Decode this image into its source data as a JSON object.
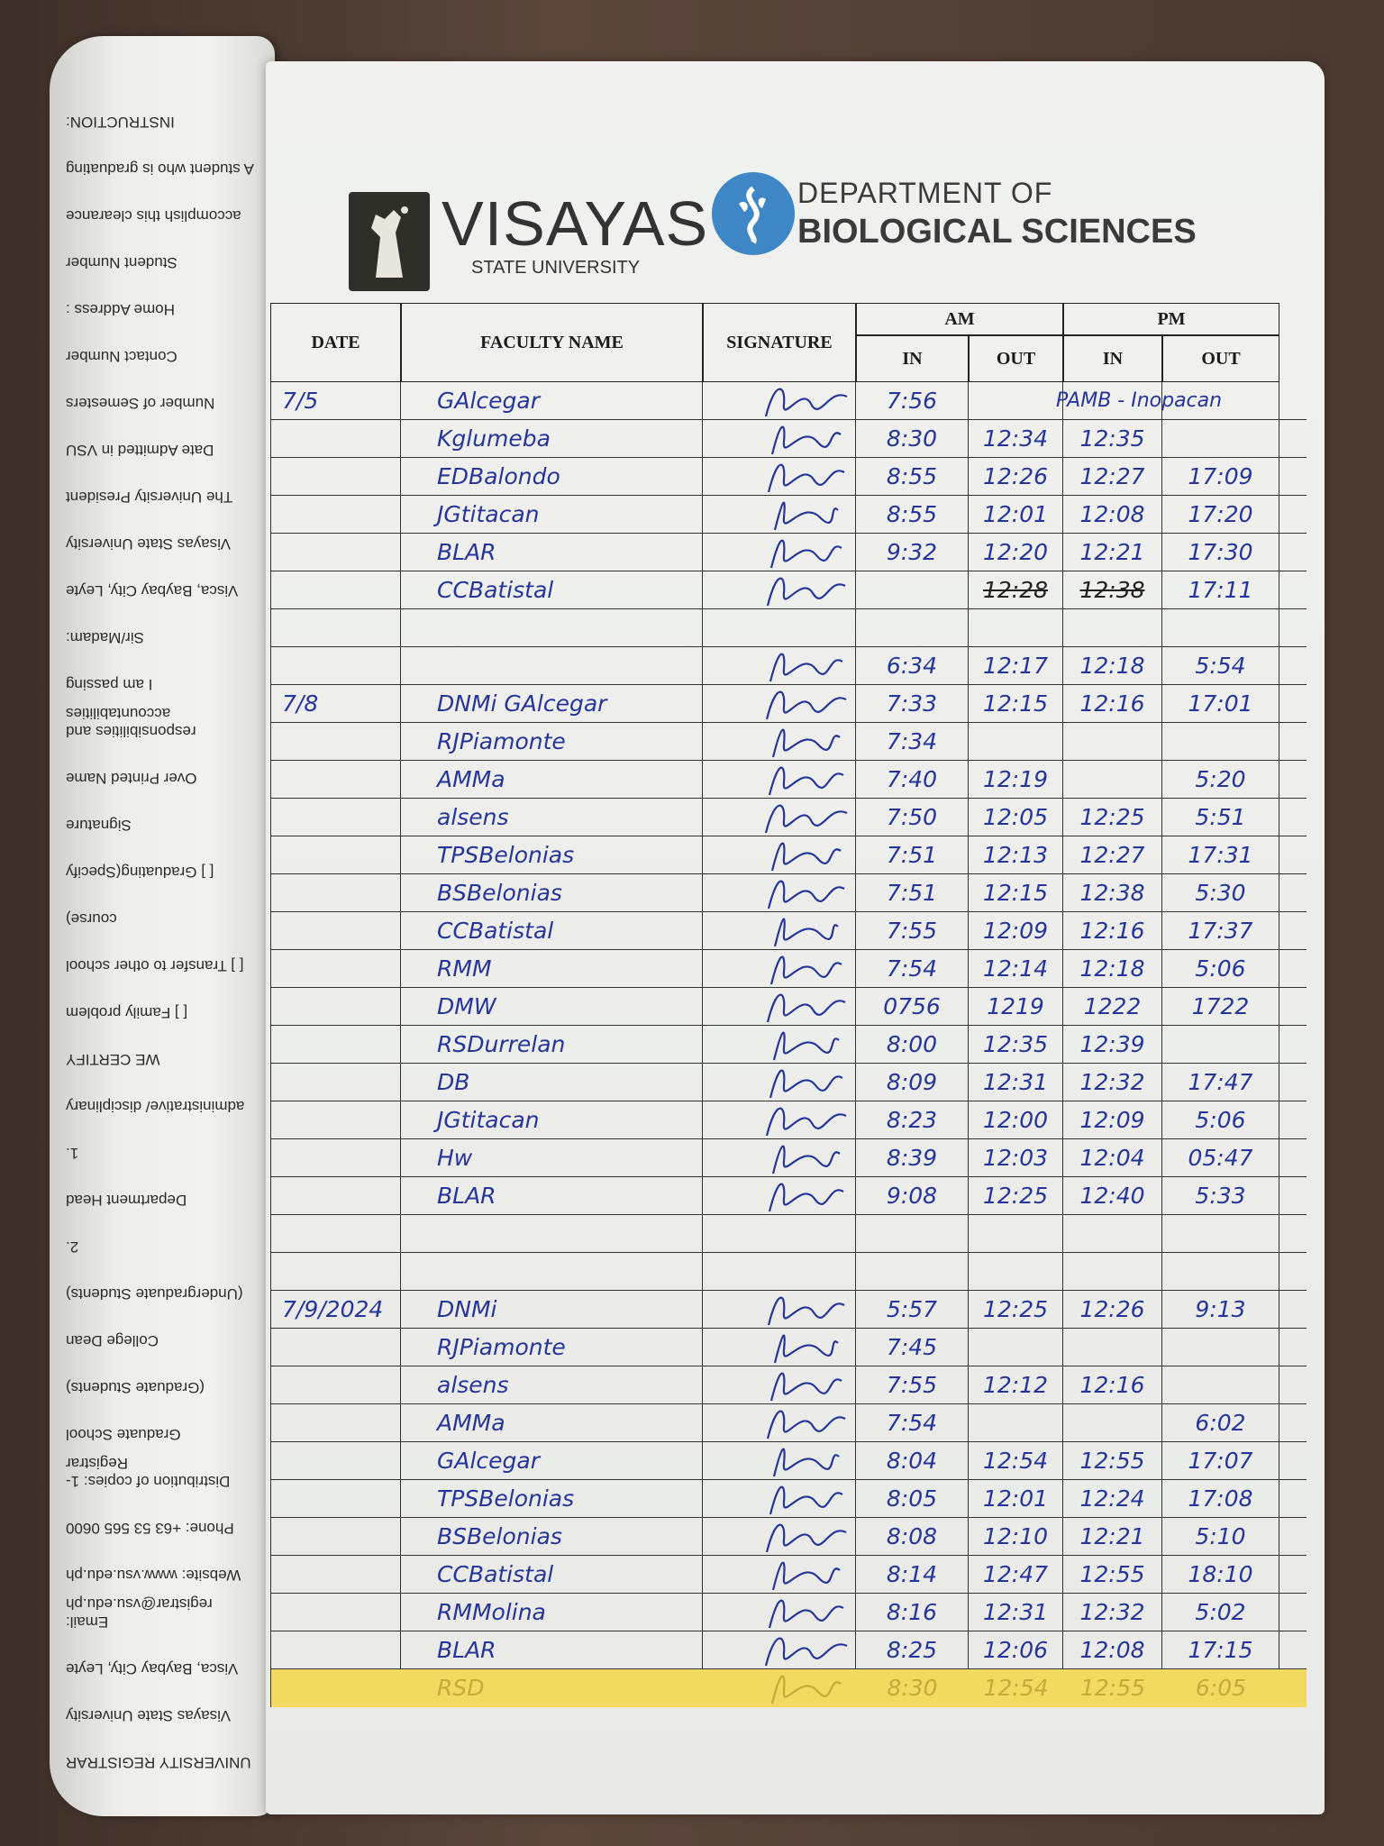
{
  "left_page": {
    "lines": [
      "UNIVERSITY REGISTRAR",
      "Visayas State University",
      "Visca, Baybay City, Leyte",
      "Email: registrar@vsu.edu.ph",
      "Website: www.vsu.edu.ph",
      "Phone: +63 53 565 0600",
      "Distribution of copies: 1-Registrar",
      "Graduate School",
      "(Graduate Students)",
      "College Dean",
      "(Undergraduate Students)",
      "2.",
      "Department Head",
      "1.",
      "administrative/ disciplinary",
      "WE CERTIFY",
      "[ ] Family problem",
      "[ ] Transfer to other school",
      "course)",
      "[ ] Graduating(Specify",
      "Signature",
      "Over Printed Name",
      "responsibilities and accountabilities",
      "I am passing",
      "Sir/Madam:",
      "Visca, Baybay City, Leyte",
      "Visayas State University",
      "The University President",
      "Date Admitted in VSU",
      "Number of Semesters",
      "Contact Number",
      "Home Address :",
      "Student Number",
      "accomplish this clearance",
      "A student who is graduating",
      "INSTRUCTION:"
    ]
  },
  "header": {
    "university": "VISAYAS",
    "university_sub": "STATE UNIVERSITY",
    "department_line1": "DEPARTMENT OF",
    "department_line2": "BIOLOGICAL SCIENCES",
    "brand_color": "#3f86c6"
  },
  "table": {
    "columns": {
      "date": "DATE",
      "name": "FACULTY NAME",
      "signature": "SIGNATURE",
      "am": "AM",
      "pm": "PM",
      "in": "IN",
      "out": "OUT"
    },
    "rows": [
      {
        "date": "7/5",
        "name": "GAlcegar",
        "signed": true,
        "am_in": "7:56",
        "am_out": "",
        "pm_in": "",
        "pm_out": "",
        "note": "PAMB - Inopacan"
      },
      {
        "date": "",
        "name": "Kglumeba",
        "signed": true,
        "am_in": "8:30",
        "am_out": "12:34",
        "pm_in": "12:35",
        "pm_out": ""
      },
      {
        "date": "",
        "name": "EDBalondo",
        "signed": true,
        "am_in": "8:55",
        "am_out": "12:26",
        "pm_in": "12:27",
        "pm_out": "17:09"
      },
      {
        "date": "",
        "name": "JGtitacan",
        "signed": true,
        "am_in": "8:55",
        "am_out": "12:01",
        "pm_in": "12:08",
        "pm_out": "17:20"
      },
      {
        "date": "",
        "name": "BLAR",
        "signed": true,
        "am_in": "9:32",
        "am_out": "12:20",
        "pm_in": "12:21",
        "pm_out": "17:30"
      },
      {
        "date": "",
        "name": "CCBatistal",
        "signed": true,
        "am_in": "",
        "am_out": "12:28",
        "pm_in": "12:38",
        "pm_out": "17:11",
        "struck": true
      },
      {
        "date": "",
        "name": "",
        "signed": false,
        "am_in": "",
        "am_out": "",
        "pm_in": "",
        "pm_out": ""
      },
      {
        "date": "",
        "name": "",
        "signed": true,
        "am_in": "6:34",
        "am_out": "12:17",
        "pm_in": "12:18",
        "pm_out": "5:54"
      },
      {
        "date": "7/8",
        "name": "DNMi GAlcegar",
        "signed": true,
        "am_in": "7:33",
        "am_out": "12:15",
        "pm_in": "12:16",
        "pm_out": "17:01"
      },
      {
        "date": "",
        "name": "RJPiamonte",
        "signed": true,
        "am_in": "7:34",
        "am_out": "",
        "pm_in": "",
        "pm_out": ""
      },
      {
        "date": "",
        "name": "AMMa",
        "signed": true,
        "am_in": "7:40",
        "am_out": "12:19",
        "pm_in": "",
        "pm_out": "5:20"
      },
      {
        "date": "",
        "name": "alsens",
        "signed": true,
        "am_in": "7:50",
        "am_out": "12:05",
        "pm_in": "12:25",
        "pm_out": "5:51"
      },
      {
        "date": "",
        "name": "TPSBelonias",
        "signed": true,
        "am_in": "7:51",
        "am_out": "12:13",
        "pm_in": "12:27",
        "pm_out": "17:31"
      },
      {
        "date": "",
        "name": "BSBelonias",
        "signed": true,
        "am_in": "7:51",
        "am_out": "12:15",
        "pm_in": "12:38",
        "pm_out": "5:30"
      },
      {
        "date": "",
        "name": "CCBatistal",
        "signed": true,
        "am_in": "7:55",
        "am_out": "12:09",
        "pm_in": "12:16",
        "pm_out": "17:37"
      },
      {
        "date": "",
        "name": "RMM",
        "signed": true,
        "am_in": "7:54",
        "am_out": "12:14",
        "pm_in": "12:18",
        "pm_out": "5:06"
      },
      {
        "date": "",
        "name": "DMW",
        "signed": true,
        "am_in": "0756",
        "am_out": "1219",
        "pm_in": "1222",
        "pm_out": "1722"
      },
      {
        "date": "",
        "name": "RSDurrelan",
        "signed": true,
        "am_in": "8:00",
        "am_out": "12:35",
        "pm_in": "12:39",
        "pm_out": ""
      },
      {
        "date": "",
        "name": "DB",
        "signed": true,
        "am_in": "8:09",
        "am_out": "12:31",
        "pm_in": "12:32",
        "pm_out": "17:47"
      },
      {
        "date": "",
        "name": "JGtitacan",
        "signed": true,
        "am_in": "8:23",
        "am_out": "12:00",
        "pm_in": "12:09",
        "pm_out": "5:06"
      },
      {
        "date": "",
        "name": "Hw",
        "signed": true,
        "am_in": "8:39",
        "am_out": "12:03",
        "pm_in": "12:04",
        "pm_out": "05:47"
      },
      {
        "date": "",
        "name": "BLAR",
        "signed": true,
        "am_in": "9:08",
        "am_out": "12:25",
        "pm_in": "12:40",
        "pm_out": "5:33"
      },
      {
        "date": "",
        "name": "",
        "signed": false,
        "am_in": "",
        "am_out": "",
        "pm_in": "",
        "pm_out": ""
      },
      {
        "date": "",
        "name": "",
        "signed": false,
        "am_in": "",
        "am_out": "",
        "pm_in": "",
        "pm_out": ""
      },
      {
        "date": "7/9/2024",
        "name": "DNMi",
        "signed": true,
        "am_in": "5:57",
        "am_out": "12:25",
        "pm_in": "12:26",
        "pm_out": "9:13"
      },
      {
        "date": "",
        "name": "RJPiamonte",
        "signed": true,
        "am_in": "7:45",
        "am_out": "",
        "pm_in": "",
        "pm_out": ""
      },
      {
        "date": "",
        "name": "alsens",
        "signed": true,
        "am_in": "7:55",
        "am_out": "12:12",
        "pm_in": "12:16",
        "pm_out": ""
      },
      {
        "date": "",
        "name": "AMMa",
        "signed": true,
        "am_in": "7:54",
        "am_out": "",
        "pm_in": "",
        "pm_out": "6:02"
      },
      {
        "date": "",
        "name": "GAlcegar",
        "signed": true,
        "am_in": "8:04",
        "am_out": "12:54",
        "pm_in": "12:55",
        "pm_out": "17:07"
      },
      {
        "date": "",
        "name": "TPSBelonias",
        "signed": true,
        "am_in": "8:05",
        "am_out": "12:01",
        "pm_in": "12:24",
        "pm_out": "17:08"
      },
      {
        "date": "",
        "name": "BSBelonias",
        "signed": true,
        "am_in": "8:08",
        "am_out": "12:10",
        "pm_in": "12:21",
        "pm_out": "5:10"
      },
      {
        "date": "",
        "name": "CCBatistal",
        "signed": true,
        "am_in": "8:14",
        "am_out": "12:47",
        "pm_in": "12:55",
        "pm_out": "18:10"
      },
      {
        "date": "",
        "name": "RMMolina",
        "signed": true,
        "am_in": "8:16",
        "am_out": "12:31",
        "pm_in": "12:32",
        "pm_out": "5:02"
      },
      {
        "date": "",
        "name": "BLAR",
        "signed": true,
        "am_in": "8:25",
        "am_out": "12:06",
        "pm_in": "12:08",
        "pm_out": "17:15"
      },
      {
        "date": "",
        "name": "RSD",
        "signed": true,
        "am_in": "8:30",
        "am_out": "12:54",
        "pm_in": "12:55",
        "pm_out": "6:05",
        "highlighted": true
      }
    ]
  },
  "highlight_color": "#f3d648",
  "ink_color": "#26359a"
}
